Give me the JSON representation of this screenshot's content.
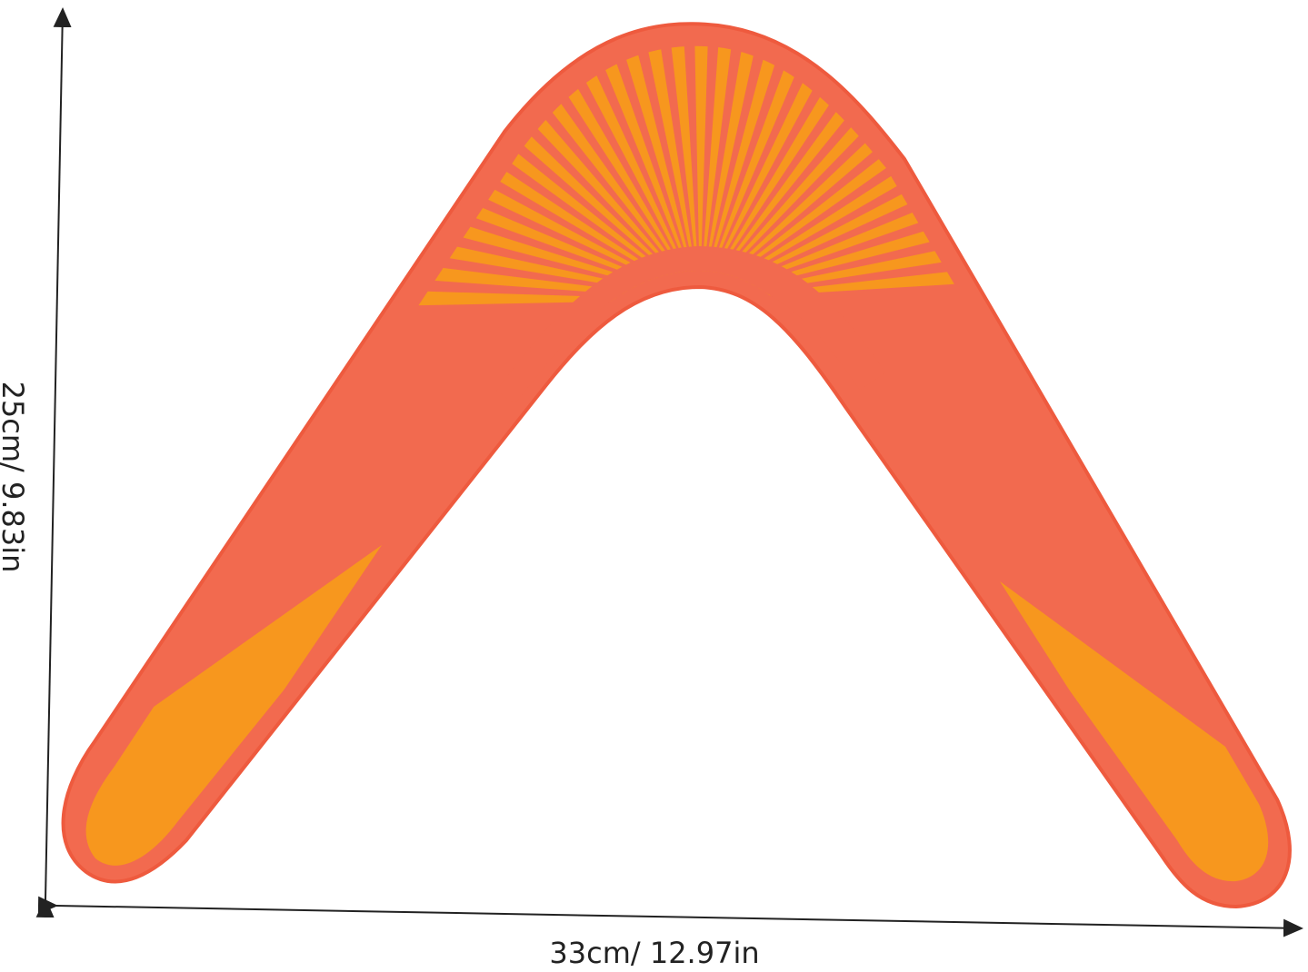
{
  "product": {
    "colors": {
      "body": "#f26a4f",
      "edge": "#ee5a3e",
      "stripe": "#f7971e"
    },
    "height_label": "25cm/ 9.83in",
    "width_label": "33cm/ 12.97in"
  }
}
